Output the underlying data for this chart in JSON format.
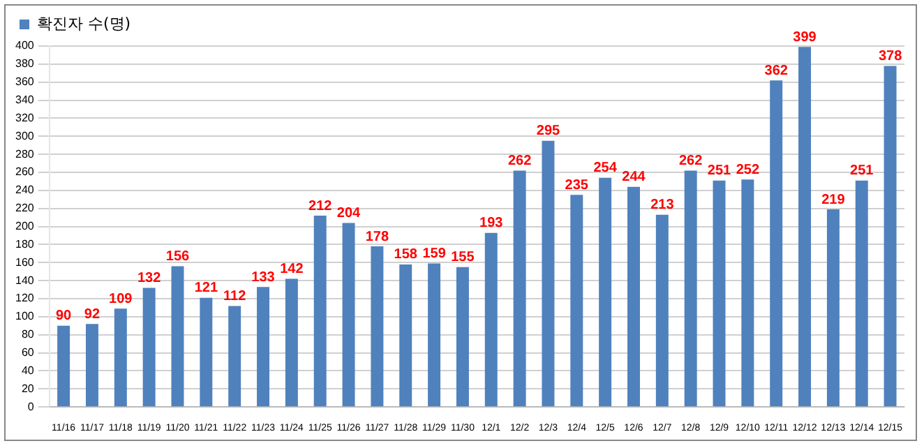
{
  "chart_data": {
    "type": "bar",
    "categories": [
      "11/16",
      "11/17",
      "11/18",
      "11/19",
      "11/20",
      "11/21",
      "11/22",
      "11/23",
      "11/24",
      "11/25",
      "11/26",
      "11/27",
      "11/28",
      "11/29",
      "11/30",
      "12/1",
      "12/2",
      "12/3",
      "12/4",
      "12/5",
      "12/6",
      "12/7",
      "12/8",
      "12/9",
      "12/10",
      "12/11",
      "12/12",
      "12/13",
      "12/14",
      "12/15"
    ],
    "series": [
      {
        "name": "확진자 수(명)",
        "color": "#4f81bd",
        "values": [
          90,
          92,
          109,
          132,
          156,
          121,
          112,
          133,
          142,
          212,
          204,
          178,
          158,
          159,
          155,
          193,
          262,
          295,
          235,
          254,
          244,
          213,
          262,
          251,
          252,
          362,
          399,
          219,
          251,
          378
        ]
      }
    ],
    "ylim": [
      0,
      400
    ],
    "yticks": [
      0,
      20,
      40,
      60,
      80,
      100,
      120,
      140,
      160,
      180,
      200,
      220,
      240,
      260,
      280,
      300,
      320,
      340,
      360,
      380,
      400
    ],
    "grid": "y",
    "legend": "top left",
    "data_labels": true
  }
}
